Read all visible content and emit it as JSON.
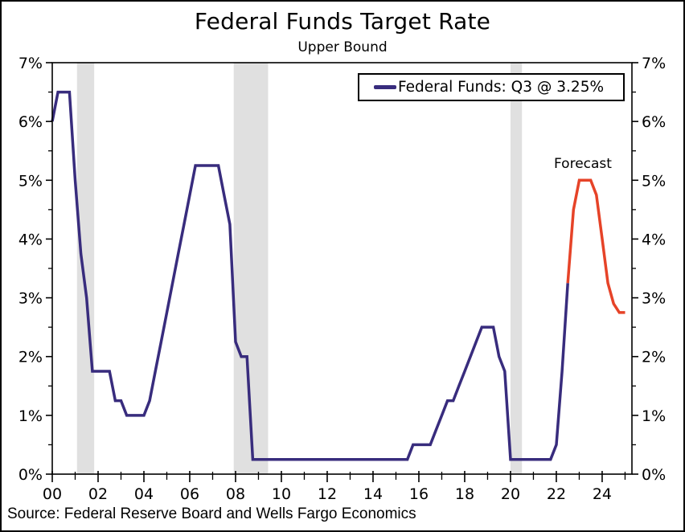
{
  "chart_data": {
    "type": "line",
    "title": "Federal Funds Target Rate",
    "subtitle": "Upper Bound",
    "source": "Source: Federal Reserve Board and Wells Fargo Economics",
    "legend": {
      "position": "top-right",
      "entries": [
        {
          "label": "Federal Funds: Q3 @ 3.25%",
          "color": "#382C7D"
        }
      ]
    },
    "annotations": [
      {
        "text": "Forecast",
        "color": "#000000"
      }
    ],
    "x_axis": {
      "range": [
        2000,
        2025.3
      ],
      "major_tick_years": [
        2000,
        2002,
        2004,
        2006,
        2008,
        2010,
        2012,
        2014,
        2016,
        2018,
        2020,
        2022,
        2024
      ],
      "tick_labels": [
        "00",
        "02",
        "04",
        "06",
        "08",
        "10",
        "12",
        "14",
        "16",
        "18",
        "20",
        "22",
        "24"
      ],
      "minor_tick_years": [
        2001,
        2003,
        2005,
        2007,
        2009,
        2011,
        2013,
        2015,
        2017,
        2019,
        2021,
        2023,
        2025
      ]
    },
    "y_axis": {
      "range": [
        0,
        7
      ],
      "major_ticks": [
        0,
        1,
        2,
        3,
        4,
        5,
        6,
        7
      ],
      "tick_labels": [
        "0%",
        "1%",
        "2%",
        "3%",
        "4%",
        "5%",
        "6%",
        "7%"
      ],
      "minor_tick_step": 0.5,
      "label_sides": "both",
      "grid": false
    },
    "recession_bands": {
      "color": "#E0E0E0",
      "spans": [
        [
          2001.08,
          2001.83
        ],
        [
          2007.92,
          2009.42
        ],
        [
          2020.0,
          2020.5
        ]
      ]
    },
    "series": [
      {
        "name": "historical",
        "color": "#382C7D",
        "points": [
          [
            2000.0,
            6.0
          ],
          [
            2000.25,
            6.5
          ],
          [
            2000.5,
            6.5
          ],
          [
            2000.75,
            6.5
          ],
          [
            2001.0,
            5.0
          ],
          [
            2001.25,
            3.75
          ],
          [
            2001.5,
            3.0
          ],
          [
            2001.75,
            1.75
          ],
          [
            2002.0,
            1.75
          ],
          [
            2002.25,
            1.75
          ],
          [
            2002.5,
            1.75
          ],
          [
            2002.75,
            1.25
          ],
          [
            2003.0,
            1.25
          ],
          [
            2003.25,
            1.0
          ],
          [
            2003.5,
            1.0
          ],
          [
            2003.75,
            1.0
          ],
          [
            2004.0,
            1.0
          ],
          [
            2004.25,
            1.25
          ],
          [
            2004.5,
            1.75
          ],
          [
            2004.75,
            2.25
          ],
          [
            2005.0,
            2.75
          ],
          [
            2005.25,
            3.25
          ],
          [
            2005.5,
            3.75
          ],
          [
            2005.75,
            4.25
          ],
          [
            2006.0,
            4.75
          ],
          [
            2006.25,
            5.25
          ],
          [
            2006.5,
            5.25
          ],
          [
            2006.75,
            5.25
          ],
          [
            2007.0,
            5.25
          ],
          [
            2007.25,
            5.25
          ],
          [
            2007.5,
            4.75
          ],
          [
            2007.75,
            4.25
          ],
          [
            2008.0,
            2.25
          ],
          [
            2008.25,
            2.0
          ],
          [
            2008.5,
            2.0
          ],
          [
            2008.75,
            0.25
          ],
          [
            2009.0,
            0.25
          ],
          [
            2009.25,
            0.25
          ],
          [
            2009.5,
            0.25
          ],
          [
            2009.75,
            0.25
          ],
          [
            2010.0,
            0.25
          ],
          [
            2010.25,
            0.25
          ],
          [
            2010.5,
            0.25
          ],
          [
            2010.75,
            0.25
          ],
          [
            2011.0,
            0.25
          ],
          [
            2011.25,
            0.25
          ],
          [
            2011.5,
            0.25
          ],
          [
            2011.75,
            0.25
          ],
          [
            2012.0,
            0.25
          ],
          [
            2012.25,
            0.25
          ],
          [
            2012.5,
            0.25
          ],
          [
            2012.75,
            0.25
          ],
          [
            2013.0,
            0.25
          ],
          [
            2013.25,
            0.25
          ],
          [
            2013.5,
            0.25
          ],
          [
            2013.75,
            0.25
          ],
          [
            2014.0,
            0.25
          ],
          [
            2014.25,
            0.25
          ],
          [
            2014.5,
            0.25
          ],
          [
            2014.75,
            0.25
          ],
          [
            2015.0,
            0.25
          ],
          [
            2015.25,
            0.25
          ],
          [
            2015.5,
            0.25
          ],
          [
            2015.75,
            0.5
          ],
          [
            2016.0,
            0.5
          ],
          [
            2016.25,
            0.5
          ],
          [
            2016.5,
            0.5
          ],
          [
            2016.75,
            0.75
          ],
          [
            2017.0,
            1.0
          ],
          [
            2017.25,
            1.25
          ],
          [
            2017.5,
            1.25
          ],
          [
            2017.75,
            1.5
          ],
          [
            2018.0,
            1.75
          ],
          [
            2018.25,
            2.0
          ],
          [
            2018.5,
            2.25
          ],
          [
            2018.75,
            2.5
          ],
          [
            2019.0,
            2.5
          ],
          [
            2019.25,
            2.5
          ],
          [
            2019.5,
            2.0
          ],
          [
            2019.75,
            1.75
          ],
          [
            2020.0,
            0.25
          ],
          [
            2020.25,
            0.25
          ],
          [
            2020.5,
            0.25
          ],
          [
            2020.75,
            0.25
          ],
          [
            2021.0,
            0.25
          ],
          [
            2021.25,
            0.25
          ],
          [
            2021.5,
            0.25
          ],
          [
            2021.75,
            0.25
          ],
          [
            2022.0,
            0.5
          ],
          [
            2022.25,
            1.75
          ],
          [
            2022.5,
            3.25
          ]
        ]
      },
      {
        "name": "forecast",
        "color": "#E64328",
        "points": [
          [
            2022.5,
            3.25
          ],
          [
            2022.75,
            4.5
          ],
          [
            2023.0,
            5.0
          ],
          [
            2023.25,
            5.0
          ],
          [
            2023.5,
            5.0
          ],
          [
            2023.75,
            4.75
          ],
          [
            2024.0,
            4.0
          ],
          [
            2024.25,
            3.25
          ],
          [
            2024.5,
            2.9
          ],
          [
            2024.75,
            2.75
          ],
          [
            2025.0,
            2.75
          ]
        ]
      }
    ]
  }
}
